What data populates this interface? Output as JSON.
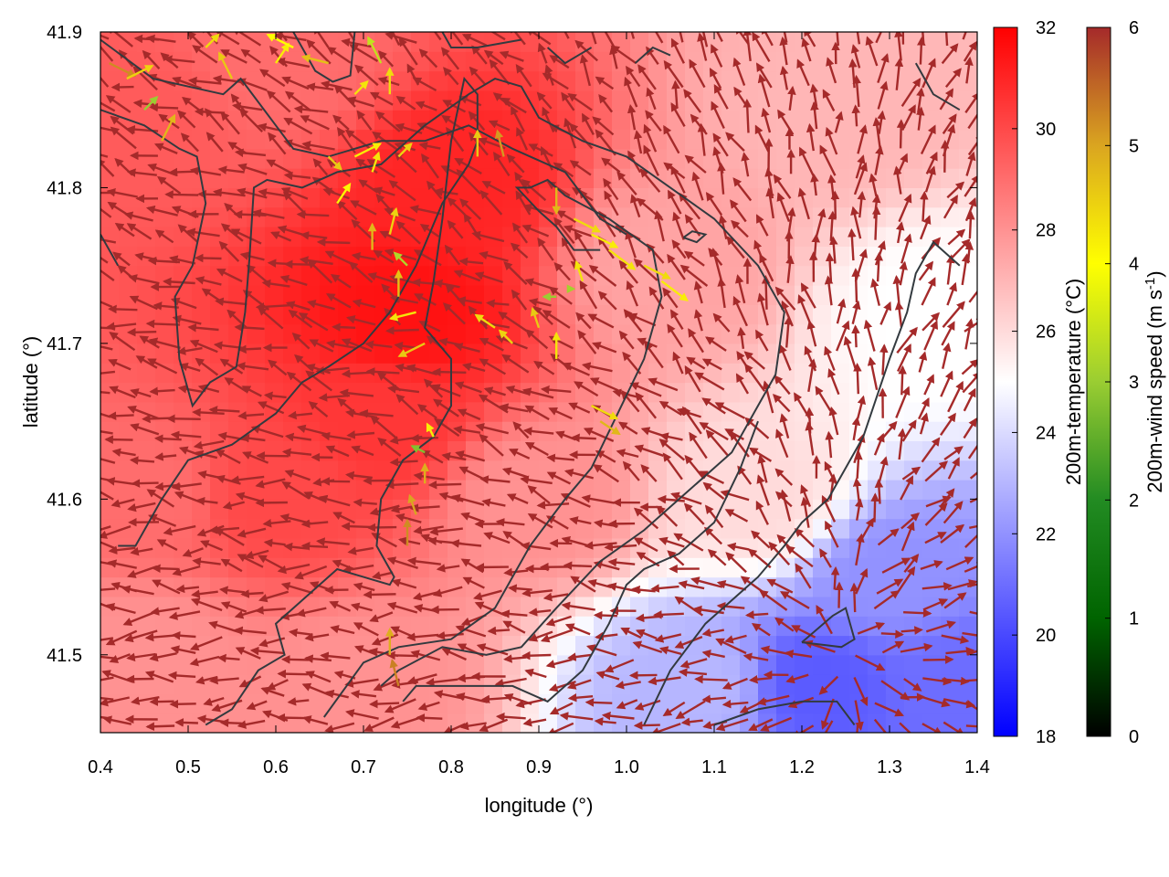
{
  "chart_data": {
    "type": "heatmap",
    "xlabel": "longitude (°)",
    "ylabel": "latitude (°)",
    "xlim": [
      0.4,
      1.4
    ],
    "ylim": [
      41.45,
      41.9
    ],
    "x_ticks": [
      {
        "value": 0.4,
        "label": "0.4"
      },
      {
        "value": 0.5,
        "label": "0.5"
      },
      {
        "value": 0.6,
        "label": "0.6"
      },
      {
        "value": 0.7,
        "label": "0.7"
      },
      {
        "value": 0.8,
        "label": "0.8"
      },
      {
        "value": 0.9,
        "label": "0.9"
      },
      {
        "value": 1.0,
        "label": "1.0"
      },
      {
        "value": 1.1,
        "label": "1.1"
      },
      {
        "value": 1.2,
        "label": "1.2"
      },
      {
        "value": 1.3,
        "label": "1.3"
      },
      {
        "value": 1.4,
        "label": "1.4"
      }
    ],
    "y_ticks": [
      {
        "value": 41.5,
        "label": "41.5"
      },
      {
        "value": 41.6,
        "label": "41.6"
      },
      {
        "value": 41.7,
        "label": "41.7"
      },
      {
        "value": 41.8,
        "label": "41.8"
      },
      {
        "value": 41.9,
        "label": "41.9"
      }
    ],
    "temperature_colorbar": {
      "label": "200m-temperature (°C)",
      "range": [
        18,
        32
      ],
      "ticks": [
        {
          "value": 18,
          "label": "18"
        },
        {
          "value": 20,
          "label": "20"
        },
        {
          "value": 22,
          "label": "22"
        },
        {
          "value": 24,
          "label": "24"
        },
        {
          "value": 26,
          "label": "26"
        },
        {
          "value": 28,
          "label": "28"
        },
        {
          "value": 30,
          "label": "30"
        },
        {
          "value": 32,
          "label": "32"
        }
      ],
      "colors": [
        "#0000ff",
        "#ffffff",
        "#ff0000"
      ]
    },
    "wind_colorbar": {
      "label_main": "200m-wind speed (m s",
      "label_sup": "-1",
      "label_end": ")",
      "range": [
        0,
        6
      ],
      "ticks": [
        {
          "value": 0,
          "label": "0"
        },
        {
          "value": 1,
          "label": "1"
        },
        {
          "value": 2,
          "label": "2"
        },
        {
          "value": 3,
          "label": "3"
        },
        {
          "value": 4,
          "label": "4"
        },
        {
          "value": 5,
          "label": "5"
        },
        {
          "value": 6,
          "label": "6"
        }
      ],
      "colors": [
        "#000000",
        "#006400",
        "#228b22",
        "#9acd32",
        "#ffff00",
        "#daa520",
        "#a52a2a"
      ]
    },
    "temperature_field": [
      {
        "lon": 0.45,
        "lat": 41.85,
        "temp": 29.5
      },
      {
        "lon": 0.6,
        "lat": 41.88,
        "temp": 29
      },
      {
        "lon": 0.8,
        "lat": 41.8,
        "temp": 31
      },
      {
        "lon": 0.75,
        "lat": 41.72,
        "temp": 31.5
      },
      {
        "lon": 0.72,
        "lat": 41.65,
        "temp": 30.5
      },
      {
        "lon": 0.6,
        "lat": 41.6,
        "temp": 30
      },
      {
        "lon": 0.45,
        "lat": 41.6,
        "temp": 29
      },
      {
        "lon": 0.45,
        "lat": 41.5,
        "temp": 28
      },
      {
        "lon": 0.7,
        "lat": 41.48,
        "temp": 28
      },
      {
        "lon": 0.9,
        "lat": 41.6,
        "temp": 28
      },
      {
        "lon": 1.05,
        "lat": 41.75,
        "temp": 27.5
      },
      {
        "lon": 1.25,
        "lat": 41.85,
        "temp": 27
      },
      {
        "lon": 1.35,
        "lat": 41.72,
        "temp": 25
      },
      {
        "lon": 1.15,
        "lat": 41.6,
        "temp": 26
      },
      {
        "lon": 1.3,
        "lat": 41.55,
        "temp": 22
      },
      {
        "lon": 1.22,
        "lat": 41.48,
        "temp": 20.5
      },
      {
        "lon": 1.08,
        "lat": 41.48,
        "temp": 23
      },
      {
        "lon": 1.38,
        "lat": 41.48,
        "temp": 21
      }
    ],
    "contours": [
      [
        [
          0.4,
          41.895
        ],
        [
          0.46,
          41.87
        ],
        [
          0.54,
          41.86
        ],
        [
          0.56,
          41.87
        ],
        [
          0.6,
          41.84
        ],
        [
          0.62,
          41.825
        ],
        [
          0.66,
          41.82
        ],
        [
          0.72,
          41.83
        ],
        [
          0.77,
          41.83
        ],
        [
          0.82,
          41.84
        ],
        [
          0.87,
          41.825
        ],
        [
          0.93,
          41.81
        ],
        [
          0.97,
          41.78
        ],
        [
          1.0,
          41.77
        ]
      ],
      [
        [
          0.62,
          41.9
        ],
        [
          0.645,
          41.875
        ],
        [
          0.665,
          41.868
        ],
        [
          0.685,
          41.872
        ],
        [
          0.69,
          41.9
        ]
      ],
      [
        [
          0.79,
          41.9
        ],
        [
          0.8,
          41.89
        ],
        [
          0.83,
          41.89
        ],
        [
          0.88,
          41.895
        ]
      ],
      [
        [
          0.4,
          41.85
        ],
        [
          0.45,
          41.84
        ],
        [
          0.49,
          41.825
        ],
        [
          0.51,
          41.82
        ],
        [
          0.52,
          41.79
        ],
        [
          0.505,
          41.75
        ],
        [
          0.485,
          41.73
        ],
        [
          0.49,
          41.69
        ],
        [
          0.505,
          41.66
        ],
        [
          0.525,
          41.675
        ],
        [
          0.555,
          41.685
        ],
        [
          0.565,
          41.72
        ],
        [
          0.57,
          41.755
        ],
        [
          0.575,
          41.8
        ],
        [
          0.59,
          41.805
        ],
        [
          0.63,
          41.8
        ],
        [
          0.67,
          41.81
        ],
        [
          0.72,
          41.815
        ],
        [
          0.77,
          41.84
        ],
        [
          0.82,
          41.86
        ],
        [
          0.85,
          41.87
        ],
        [
          0.88,
          41.865
        ],
        [
          0.9,
          41.845
        ],
        [
          0.95,
          41.83
        ],
        [
          1.0,
          41.82
        ],
        [
          1.05,
          41.8
        ],
        [
          1.1,
          41.78
        ],
        [
          1.15,
          41.75
        ],
        [
          1.18,
          41.72
        ],
        [
          1.17,
          41.68
        ],
        [
          1.12,
          41.63
        ],
        [
          1.06,
          41.6
        ],
        [
          1.02,
          41.58
        ],
        [
          0.97,
          41.56
        ],
        [
          0.92,
          41.53
        ],
        [
          0.88,
          41.505
        ],
        [
          0.84,
          41.5
        ],
        [
          0.79,
          41.505
        ],
        [
          0.74,
          41.49
        ],
        [
          0.72,
          41.48
        ]
      ],
      [
        [
          0.4,
          41.77
        ],
        [
          0.42,
          41.75
        ]
      ],
      [
        [
          0.42,
          41.57
        ],
        [
          0.44,
          41.57
        ],
        [
          0.47,
          41.6
        ],
        [
          0.5,
          41.625
        ],
        [
          0.55,
          41.635
        ],
        [
          0.6,
          41.655
        ],
        [
          0.63,
          41.675
        ],
        [
          0.66,
          41.685
        ],
        [
          0.7,
          41.7
        ],
        [
          0.73,
          41.72
        ],
        [
          0.76,
          41.75
        ],
        [
          0.79,
          41.79
        ],
        [
          0.82,
          41.815
        ],
        [
          0.83,
          41.83
        ],
        [
          0.83,
          41.86
        ],
        [
          0.815,
          41.87
        ],
        [
          0.8,
          41.83
        ],
        [
          0.79,
          41.78
        ],
        [
          0.78,
          41.74
        ],
        [
          0.77,
          41.71
        ],
        [
          0.8,
          41.69
        ],
        [
          0.8,
          41.66
        ],
        [
          0.78,
          41.64
        ],
        [
          0.745,
          41.625
        ],
        [
          0.72,
          41.6
        ],
        [
          0.715,
          41.57
        ],
        [
          0.735,
          41.55
        ],
        [
          0.73,
          41.545
        ],
        [
          0.7,
          41.55
        ],
        [
          0.67,
          41.555
        ],
        [
          0.63,
          41.535
        ],
        [
          0.6,
          41.52
        ],
        [
          0.61,
          41.5
        ],
        [
          0.58,
          41.49
        ],
        [
          0.55,
          41.465
        ],
        [
          0.52,
          41.455
        ]
      ],
      [
        [
          0.655,
          41.46
        ],
        [
          0.7,
          41.495
        ],
        [
          0.74,
          41.505
        ],
        [
          0.8,
          41.51
        ],
        [
          0.85,
          41.53
        ],
        [
          0.89,
          41.57
        ],
        [
          0.93,
          41.6
        ],
        [
          0.96,
          41.62
        ],
        [
          0.99,
          41.655
        ],
        [
          1.02,
          41.69
        ],
        [
          1.04,
          41.73
        ],
        [
          1.03,
          41.76
        ],
        [
          0.98,
          41.78
        ],
        [
          0.93,
          41.795
        ],
        [
          0.91,
          41.805
        ],
        [
          0.89,
          41.8
        ],
        [
          0.875,
          41.8
        ],
        [
          0.9,
          41.785
        ],
        [
          0.92,
          41.775
        ],
        [
          0.94,
          41.76
        ],
        [
          0.97,
          41.76
        ]
      ],
      [
        [
          0.745,
          41.47
        ],
        [
          0.76,
          41.48
        ],
        [
          0.82,
          41.48
        ],
        [
          0.87,
          41.48
        ],
        [
          0.91,
          41.47
        ],
        [
          0.95,
          41.49
        ],
        [
          0.98,
          41.52
        ],
        [
          1.0,
          41.545
        ],
        [
          1.02,
          41.555
        ],
        [
          1.06,
          41.565
        ],
        [
          1.1,
          41.585
        ],
        [
          1.13,
          41.62
        ],
        [
          1.15,
          41.65
        ]
      ],
      [
        [
          1.02,
          41.455
        ],
        [
          1.05,
          41.49
        ],
        [
          1.09,
          41.52
        ],
        [
          1.15,
          41.55
        ],
        [
          1.18,
          41.57
        ],
        [
          1.2,
          41.585
        ],
        [
          1.23,
          41.6
        ],
        [
          1.27,
          41.64
        ],
        [
          1.3,
          41.69
        ],
        [
          1.32,
          41.72
        ],
        [
          1.33,
          41.745
        ],
        [
          1.35,
          41.765
        ],
        [
          1.36,
          41.76
        ],
        [
          1.38,
          41.75
        ]
      ],
      [
        [
          1.1,
          41.455
        ],
        [
          1.15,
          41.465
        ],
        [
          1.2,
          41.47
        ],
        [
          1.24,
          41.47
        ],
        [
          1.26,
          41.455
        ]
      ],
      [
        [
          1.2,
          41.508
        ],
        [
          1.235,
          41.525
        ],
        [
          1.25,
          41.53
        ],
        [
          1.26,
          41.51
        ],
        [
          1.245,
          41.505
        ],
        [
          1.2,
          41.508
        ]
      ],
      [
        [
          1.065,
          41.768
        ],
        [
          1.08,
          41.765
        ],
        [
          1.09,
          41.77
        ],
        [
          1.075,
          41.772
        ],
        [
          1.065,
          41.768
        ]
      ],
      [
        [
          1.33,
          41.88
        ],
        [
          1.35,
          41.86
        ],
        [
          1.38,
          41.85
        ]
      ],
      [
        [
          0.91,
          41.89
        ],
        [
          0.93,
          41.88
        ],
        [
          0.96,
          41.89
        ]
      ],
      [
        [
          1.01,
          41.88
        ],
        [
          1.03,
          41.89
        ],
        [
          1.05,
          41.885
        ]
      ]
    ],
    "wind_vectors": [
      {
        "lon": 0.41,
        "lat": 41.88,
        "u": 0.02,
        "v": -0.01,
        "speed": 5.2
      },
      {
        "lon": 0.43,
        "lat": 41.87,
        "u": 0.02,
        "v": 0.01,
        "speed": 4.5
      },
      {
        "lon": 0.45,
        "lat": 41.85,
        "u": 0.01,
        "v": 0.01,
        "speed": 3.0
      },
      {
        "lon": 0.47,
        "lat": 41.83,
        "u": 0.01,
        "v": 0.02,
        "speed": 4.8
      },
      {
        "lon": 0.52,
        "lat": 41.89,
        "u": 0.01,
        "v": 0.01,
        "speed": 4.4
      },
      {
        "lon": 0.55,
        "lat": 41.87,
        "u": -0.01,
        "v": 0.02,
        "speed": 4.6
      },
      {
        "lon": 0.6,
        "lat": 41.88,
        "u": 0.01,
        "v": 0.015,
        "speed": 4.2
      },
      {
        "lon": 0.62,
        "lat": 41.89,
        "u": -0.02,
        "v": 0.01,
        "speed": 4.0
      },
      {
        "lon": 0.66,
        "lat": 41.88,
        "u": -0.02,
        "v": 0.005,
        "speed": 4.7
      },
      {
        "lon": 0.69,
        "lat": 41.86,
        "u": 0.01,
        "v": 0.01,
        "speed": 4.3
      },
      {
        "lon": 0.72,
        "lat": 41.88,
        "u": -0.01,
        "v": 0.02,
        "speed": 3.4
      },
      {
        "lon": 0.73,
        "lat": 41.86,
        "u": 0.0,
        "v": 0.02,
        "speed": 4.4
      },
      {
        "lon": 0.66,
        "lat": 41.82,
        "u": 0.01,
        "v": -0.01,
        "speed": 4.6
      },
      {
        "lon": 0.69,
        "lat": 41.82,
        "u": 0.02,
        "v": 0.01,
        "speed": 4.2
      },
      {
        "lon": 0.67,
        "lat": 41.79,
        "u": 0.01,
        "v": 0.015,
        "speed": 4.1
      },
      {
        "lon": 0.71,
        "lat": 41.81,
        "u": 0.005,
        "v": 0.015,
        "speed": 4.3
      },
      {
        "lon": 0.74,
        "lat": 41.82,
        "u": 0.01,
        "v": 0.01,
        "speed": 4.5
      },
      {
        "lon": 0.83,
        "lat": 41.82,
        "u": 0.0,
        "v": 0.02,
        "speed": 4.6
      },
      {
        "lon": 0.86,
        "lat": 41.82,
        "u": -0.005,
        "v": 0.02,
        "speed": 5.1
      },
      {
        "lon": 0.71,
        "lat": 41.76,
        "u": 0.0,
        "v": 0.02,
        "speed": 4.8
      },
      {
        "lon": 0.73,
        "lat": 41.77,
        "u": 0.005,
        "v": 0.02,
        "speed": 4.5
      },
      {
        "lon": 0.75,
        "lat": 41.75,
        "u": -0.01,
        "v": 0.01,
        "speed": 3.2
      },
      {
        "lon": 0.74,
        "lat": 41.73,
        "u": 0.0,
        "v": 0.02,
        "speed": 4.7
      },
      {
        "lon": 0.76,
        "lat": 41.72,
        "u": -0.02,
        "v": -0.005,
        "speed": 4.3
      },
      {
        "lon": 0.77,
        "lat": 41.7,
        "u": -0.02,
        "v": -0.01,
        "speed": 4.6
      },
      {
        "lon": 0.92,
        "lat": 41.8,
        "u": 0.0,
        "v": -0.02,
        "speed": 4.8
      },
      {
        "lon": 0.94,
        "lat": 41.78,
        "u": 0.02,
        "v": -0.01,
        "speed": 4.4
      },
      {
        "lon": 0.96,
        "lat": 41.77,
        "u": 0.02,
        "v": -0.01,
        "speed": 4.2
      },
      {
        "lon": 0.98,
        "lat": 41.76,
        "u": 0.02,
        "v": -0.015,
        "speed": 4.3
      },
      {
        "lon": 1.02,
        "lat": 41.75,
        "u": 0.02,
        "v": -0.01,
        "speed": 4.4
      },
      {
        "lon": 1.04,
        "lat": 41.74,
        "u": 0.02,
        "v": -0.015,
        "speed": 4.2
      },
      {
        "lon": 0.92,
        "lat": 41.73,
        "u": -0.01,
        "v": 0.0,
        "speed": 3.0
      },
      {
        "lon": 0.94,
        "lat": 41.735,
        "u": 0.0,
        "v": 0.0,
        "speed": 3.1
      },
      {
        "lon": 0.95,
        "lat": 41.74,
        "u": -0.005,
        "v": 0.015,
        "speed": 4.3
      },
      {
        "lon": 0.85,
        "lat": 41.71,
        "u": -0.015,
        "v": 0.01,
        "speed": 4.4
      },
      {
        "lon": 0.87,
        "lat": 41.7,
        "u": -0.01,
        "v": 0.01,
        "speed": 4.5
      },
      {
        "lon": 0.9,
        "lat": 41.71,
        "u": -0.005,
        "v": 0.015,
        "speed": 4.6
      },
      {
        "lon": 0.92,
        "lat": 41.69,
        "u": 0.0,
        "v": 0.02,
        "speed": 4.3
      },
      {
        "lon": 0.96,
        "lat": 41.66,
        "u": 0.02,
        "v": -0.01,
        "speed": 4.4
      },
      {
        "lon": 0.97,
        "lat": 41.65,
        "u": 0.015,
        "v": -0.01,
        "speed": 4.8
      },
      {
        "lon": 0.78,
        "lat": 41.64,
        "u": -0.005,
        "v": 0.01,
        "speed": 4.2
      },
      {
        "lon": 0.77,
        "lat": 41.63,
        "u": -0.01,
        "v": 0.005,
        "speed": 2.8
      },
      {
        "lon": 0.77,
        "lat": 41.61,
        "u": 0.0,
        "v": 0.015,
        "speed": 4.9
      },
      {
        "lon": 0.76,
        "lat": 41.59,
        "u": -0.005,
        "v": 0.015,
        "speed": 5.0
      },
      {
        "lon": 0.75,
        "lat": 41.57,
        "u": 0.0,
        "v": 0.02,
        "speed": 5.2
      },
      {
        "lon": 0.73,
        "lat": 41.5,
        "u": 0.0,
        "v": 0.02,
        "speed": 4.9
      },
      {
        "lon": 0.74,
        "lat": 41.48,
        "u": -0.005,
        "v": 0.02,
        "speed": 5.3
      }
    ]
  }
}
